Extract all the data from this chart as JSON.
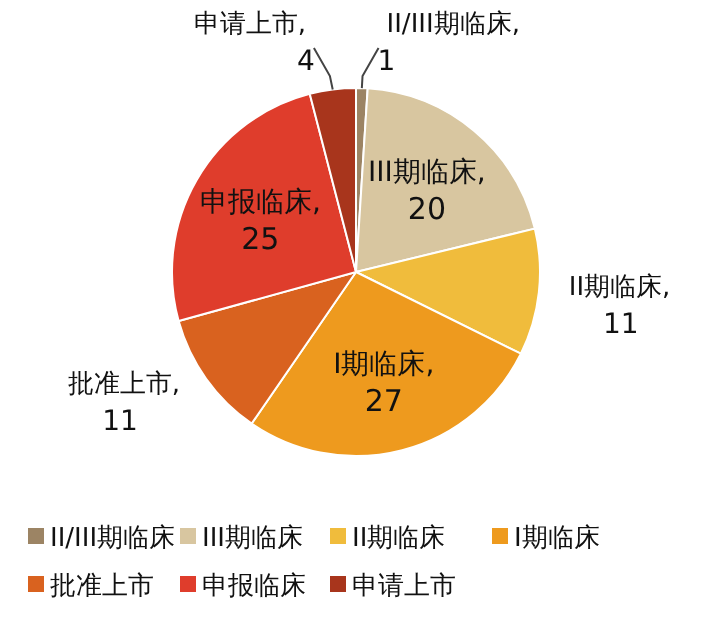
{
  "chart_data": {
    "type": "pie",
    "categories": [
      "II/III期临床",
      "III期临床",
      "II期临床",
      "I期临床",
      "批准上市",
      "申报临床",
      "申请上市"
    ],
    "values": [
      1,
      20,
      11,
      27,
      11,
      25,
      4
    ],
    "colors": [
      "#9c8464",
      "#d8c6a0",
      "#f0bc3c",
      "#ee9a1e",
      "#d9621f",
      "#df3d2c",
      "#a8351c"
    ],
    "value_labels": [
      "II/III期临床, 1",
      "III期临床, 20",
      "II期临床, 11",
      "I期临床, 27",
      "批准上市, 11",
      "申报临床, 25",
      "申请上市, 4"
    ],
    "legend": "bottom"
  }
}
